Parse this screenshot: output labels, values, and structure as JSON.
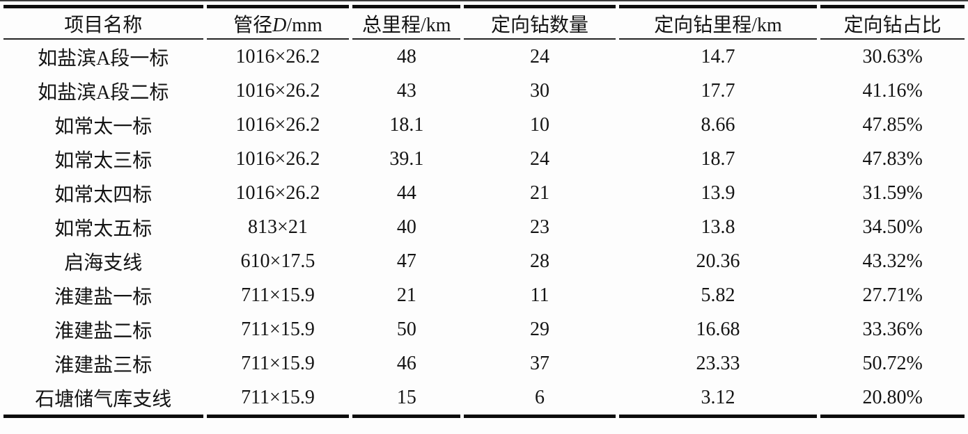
{
  "style": {
    "ink_color": "#141414",
    "rule_color": "#0d0d0d",
    "background_color": "#fdfdfd"
  },
  "table": {
    "columns": [
      {
        "key": "project-name",
        "label": "项目名称"
      },
      {
        "key": "diameter",
        "label_pre": "管径",
        "label_italic": "D",
        "label_post": "/mm"
      },
      {
        "key": "total-mileage",
        "label": "总里程/km"
      },
      {
        "key": "hdd-count",
        "label": "定向钻数量"
      },
      {
        "key": "hdd-mileage",
        "label": "定向钻里程/km"
      },
      {
        "key": "hdd-ratio",
        "label": "定向钻占比"
      }
    ],
    "rows": [
      [
        "如盐滨A段一标",
        "1016×26.2",
        "48",
        "24",
        "14.7",
        "30.63%"
      ],
      [
        "如盐滨A段二标",
        "1016×26.2",
        "43",
        "30",
        "17.7",
        "41.16%"
      ],
      [
        "如常太一标",
        "1016×26.2",
        "18.1",
        "10",
        "8.66",
        "47.85%"
      ],
      [
        "如常太三标",
        "1016×26.2",
        "39.1",
        "24",
        "18.7",
        "47.83%"
      ],
      [
        "如常太四标",
        "1016×26.2",
        "44",
        "21",
        "13.9",
        "31.59%"
      ],
      [
        "如常太五标",
        "813×21",
        "40",
        "23",
        "13.8",
        "34.50%"
      ],
      [
        "启海支线",
        "610×17.5",
        "47",
        "28",
        "20.36",
        "43.32%"
      ],
      [
        "淮建盐一标",
        "711×15.9",
        "21",
        "11",
        "5.82",
        "27.71%"
      ],
      [
        "淮建盐二标",
        "711×15.9",
        "50",
        "29",
        "16.68",
        "33.36%"
      ],
      [
        "淮建盐三标",
        "711×15.9",
        "46",
        "37",
        "23.33",
        "50.72%"
      ],
      [
        "石塘储气库支线",
        "711×15.9",
        "15",
        "6",
        "3.12",
        "20.80%"
      ]
    ]
  }
}
